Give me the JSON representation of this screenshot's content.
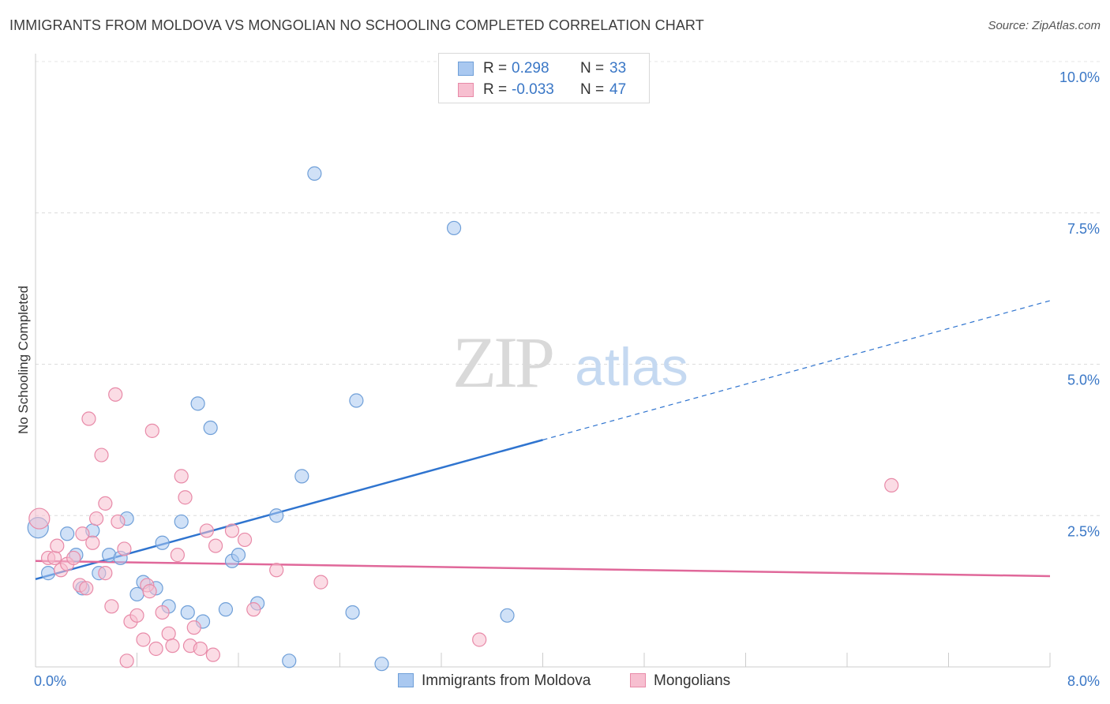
{
  "title": "IMMIGRANTS FROM MOLDOVA VS MONGOLIAN NO SCHOOLING COMPLETED CORRELATION CHART",
  "source": "Source: ZipAtlas.com",
  "watermark": {
    "zip": "ZIP",
    "atlas": "atlas"
  },
  "legend_top": {
    "rows": [
      {
        "r_label": "R =",
        "r_value": "0.298",
        "n_label": "N =",
        "n_value": "33",
        "color": "#a9c8f0",
        "border": "#6f9fd8"
      },
      {
        "r_label": "R =",
        "r_value": "-0.033",
        "n_label": "N =",
        "n_value": "47",
        "color": "#f7bfd0",
        "border": "#e88aa8"
      }
    ]
  },
  "legend_bottom": [
    {
      "label": "Immigrants from Moldova",
      "color": "#a9c8f0",
      "border": "#6f9fd8"
    },
    {
      "label": "Mongolians",
      "color": "#f7bfd0",
      "border": "#e88aa8"
    }
  ],
  "chart_data": {
    "type": "scatter",
    "title": "IMMIGRANTS FROM MOLDOVA VS MONGOLIAN NO SCHOOLING COMPLETED CORRELATION CHART",
    "xlabel": "",
    "ylabel": "No Schooling Completed",
    "xlim": [
      0,
      8
    ],
    "ylim": [
      0,
      10
    ],
    "x_tick_labels": [
      "0.0%",
      "8.0%"
    ],
    "y_ticks": [
      2.5,
      5.0,
      7.5,
      10.0
    ],
    "y_tick_labels": [
      "2.5%",
      "5.0%",
      "7.5%",
      "10.0%"
    ],
    "grid": "horizontal dashed",
    "legend_position": "top-center and bottom",
    "series": [
      {
        "name": "Immigrants from Moldova",
        "color": "#a9c8f0",
        "stroke": "#6f9fd8",
        "line_color": "#2f74cf",
        "trend": {
          "x0": 0.0,
          "y0": 1.45,
          "x_solid_end": 4.0,
          "x1": 8.0,
          "y1": 6.05
        },
        "points": [
          [
            0.02,
            2.3
          ],
          [
            0.1,
            1.55
          ],
          [
            0.25,
            2.2
          ],
          [
            0.32,
            1.85
          ],
          [
            0.37,
            1.3
          ],
          [
            0.45,
            2.25
          ],
          [
            0.5,
            1.55
          ],
          [
            0.58,
            1.85
          ],
          [
            0.67,
            1.8
          ],
          [
            0.72,
            2.45
          ],
          [
            0.8,
            1.2
          ],
          [
            0.85,
            1.4
          ],
          [
            0.95,
            1.3
          ],
          [
            1.0,
            2.05
          ],
          [
            1.05,
            1.0
          ],
          [
            1.15,
            2.4
          ],
          [
            1.2,
            0.9
          ],
          [
            1.28,
            4.35
          ],
          [
            1.32,
            0.75
          ],
          [
            1.38,
            3.95
          ],
          [
            1.5,
            0.95
          ],
          [
            1.55,
            1.75
          ],
          [
            1.6,
            1.85
          ],
          [
            1.75,
            1.05
          ],
          [
            1.9,
            2.5
          ],
          [
            2.0,
            0.1
          ],
          [
            2.1,
            3.15
          ],
          [
            2.2,
            8.15
          ],
          [
            2.5,
            0.9
          ],
          [
            2.53,
            4.4
          ],
          [
            2.73,
            0.05
          ],
          [
            3.3,
            7.25
          ],
          [
            3.72,
            0.85
          ]
        ]
      },
      {
        "name": "Mongolians",
        "color": "#f7bfd0",
        "stroke": "#e88aa8",
        "line_color": "#e0689a",
        "trend": {
          "x0": 0.0,
          "y0": 1.75,
          "x_solid_end": 8.0,
          "x1": 8.0,
          "y1": 1.5
        },
        "points": [
          [
            0.03,
            2.45
          ],
          [
            0.1,
            1.8
          ],
          [
            0.15,
            1.8
          ],
          [
            0.17,
            2.0
          ],
          [
            0.2,
            1.6
          ],
          [
            0.25,
            1.7
          ],
          [
            0.3,
            1.8
          ],
          [
            0.35,
            1.35
          ],
          [
            0.37,
            2.2
          ],
          [
            0.4,
            1.3
          ],
          [
            0.42,
            4.1
          ],
          [
            0.45,
            2.05
          ],
          [
            0.48,
            2.45
          ],
          [
            0.52,
            3.5
          ],
          [
            0.55,
            2.7
          ],
          [
            0.6,
            1.0
          ],
          [
            0.63,
            4.5
          ],
          [
            0.65,
            2.4
          ],
          [
            0.7,
            1.95
          ],
          [
            0.72,
            0.1
          ],
          [
            0.75,
            0.75
          ],
          [
            0.8,
            0.85
          ],
          [
            0.85,
            0.45
          ],
          [
            0.88,
            1.35
          ],
          [
            0.9,
            1.25
          ],
          [
            0.92,
            3.9
          ],
          [
            0.95,
            0.3
          ],
          [
            1.0,
            0.9
          ],
          [
            1.05,
            0.55
          ],
          [
            1.08,
            0.35
          ],
          [
            1.12,
            1.85
          ],
          [
            1.15,
            3.15
          ],
          [
            1.18,
            2.8
          ],
          [
            1.22,
            0.35
          ],
          [
            1.25,
            0.65
          ],
          [
            1.3,
            0.3
          ],
          [
            1.35,
            2.25
          ],
          [
            1.4,
            0.2
          ],
          [
            1.42,
            2.0
          ],
          [
            1.55,
            2.25
          ],
          [
            1.65,
            2.1
          ],
          [
            1.72,
            0.95
          ],
          [
            1.9,
            1.6
          ],
          [
            2.25,
            1.4
          ],
          [
            3.5,
            0.45
          ],
          [
            6.75,
            3.0
          ],
          [
            0.55,
            1.55
          ]
        ]
      }
    ]
  }
}
